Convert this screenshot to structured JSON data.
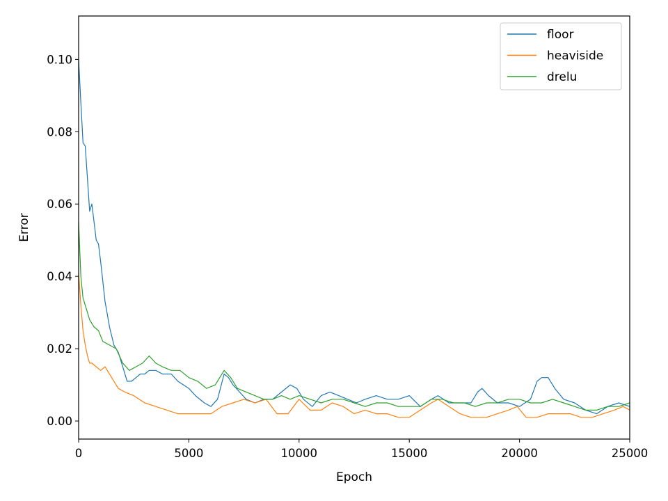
{
  "chart_data": {
    "type": "line",
    "title": "",
    "xlabel": "Epoch",
    "ylabel": "Error",
    "xlim": [
      0,
      25000
    ],
    "ylim": [
      -0.005,
      0.112
    ],
    "xticks": [
      0,
      5000,
      10000,
      15000,
      20000,
      25000
    ],
    "xtick_labels": [
      "0",
      "5000",
      "10000",
      "15000",
      "20000",
      "25000"
    ],
    "yticks": [
      0.0,
      0.02,
      0.04,
      0.06,
      0.08,
      0.1
    ],
    "ytick_labels": [
      "0.00",
      "0.02",
      "0.04",
      "0.06",
      "0.08",
      "0.10"
    ],
    "grid": false,
    "legend_position": "top-right",
    "series": [
      {
        "name": "floor",
        "color": "#1f77b4",
        "x": [
          0,
          100,
          200,
          300,
          400,
          500,
          600,
          700,
          800,
          900,
          1000,
          1200,
          1400,
          1600,
          1800,
          2000,
          2200,
          2400,
          2600,
          2800,
          3000,
          3200,
          3500,
          3800,
          4200,
          4500,
          5000,
          5300,
          5700,
          6000,
          6300,
          6600,
          6800,
          7000,
          7300,
          7600,
          8000,
          8400,
          8800,
          9200,
          9600,
          9900,
          10200,
          10600,
          11000,
          11400,
          11800,
          12200,
          12600,
          13000,
          13500,
          14000,
          14500,
          15000,
          15500,
          16000,
          16300,
          16800,
          17300,
          17800,
          18100,
          18300,
          18600,
          19000,
          19500,
          20000,
          20500,
          20800,
          21000,
          21300,
          21600,
          22000,
          22500,
          23000,
          23500,
          24000,
          24500,
          25000
        ],
        "y": [
          0.1,
          0.088,
          0.077,
          0.076,
          0.067,
          0.058,
          0.06,
          0.055,
          0.05,
          0.049,
          0.044,
          0.033,
          0.026,
          0.021,
          0.019,
          0.015,
          0.011,
          0.011,
          0.012,
          0.013,
          0.013,
          0.014,
          0.014,
          0.013,
          0.013,
          0.011,
          0.009,
          0.007,
          0.005,
          0.004,
          0.006,
          0.013,
          0.012,
          0.01,
          0.008,
          0.006,
          0.005,
          0.006,
          0.006,
          0.008,
          0.01,
          0.009,
          0.006,
          0.004,
          0.007,
          0.008,
          0.007,
          0.006,
          0.005,
          0.006,
          0.007,
          0.006,
          0.006,
          0.007,
          0.004,
          0.006,
          0.007,
          0.005,
          0.005,
          0.005,
          0.008,
          0.009,
          0.007,
          0.005,
          0.005,
          0.004,
          0.006,
          0.011,
          0.012,
          0.012,
          0.009,
          0.006,
          0.005,
          0.003,
          0.002,
          0.004,
          0.005,
          0.004
        ]
      },
      {
        "name": "heaviside",
        "color": "#ff7f0e",
        "x": [
          0,
          100,
          200,
          300,
          400,
          500,
          600,
          800,
          1000,
          1200,
          1500,
          1800,
          2100,
          2500,
          3000,
          3500,
          4000,
          4500,
          5000,
          5500,
          6000,
          6500,
          7000,
          7500,
          8000,
          8500,
          9000,
          9500,
          10000,
          10500,
          11000,
          11500,
          12000,
          12500,
          13000,
          13500,
          14000,
          14500,
          15000,
          15500,
          16000,
          16300,
          16800,
          17300,
          17800,
          18500,
          19000,
          19500,
          19900,
          20300,
          20800,
          21300,
          21800,
          22300,
          22800,
          23300,
          23800,
          24300,
          24700,
          25000
        ],
        "y": [
          0.041,
          0.032,
          0.025,
          0.021,
          0.018,
          0.016,
          0.016,
          0.015,
          0.014,
          0.015,
          0.012,
          0.009,
          0.008,
          0.007,
          0.005,
          0.004,
          0.003,
          0.002,
          0.002,
          0.002,
          0.002,
          0.004,
          0.005,
          0.006,
          0.005,
          0.006,
          0.002,
          0.002,
          0.006,
          0.003,
          0.003,
          0.005,
          0.004,
          0.002,
          0.003,
          0.002,
          0.002,
          0.001,
          0.001,
          0.003,
          0.005,
          0.006,
          0.004,
          0.002,
          0.001,
          0.001,
          0.002,
          0.003,
          0.004,
          0.001,
          0.001,
          0.002,
          0.002,
          0.002,
          0.001,
          0.001,
          0.002,
          0.003,
          0.004,
          0.003
        ]
      },
      {
        "name": "drelu",
        "color": "#2ca02c",
        "x": [
          0,
          100,
          200,
          300,
          400,
          500,
          700,
          900,
          1100,
          1400,
          1700,
          2000,
          2300,
          2600,
          2900,
          3200,
          3500,
          3800,
          4200,
          4600,
          5000,
          5400,
          5800,
          6200,
          6600,
          6900,
          7200,
          7600,
          8000,
          8400,
          8800,
          9200,
          9600,
          10000,
          10500,
          11000,
          11500,
          12000,
          12500,
          13000,
          13500,
          14000,
          14500,
          15000,
          15500,
          16000,
          16500,
          17000,
          17500,
          18000,
          18500,
          19000,
          19500,
          20000,
          20500,
          21000,
          21500,
          22000,
          22500,
          23000,
          23500,
          24000,
          24500,
          25000
        ],
        "y": [
          0.055,
          0.04,
          0.034,
          0.032,
          0.03,
          0.028,
          0.026,
          0.025,
          0.022,
          0.021,
          0.02,
          0.016,
          0.014,
          0.015,
          0.016,
          0.018,
          0.016,
          0.015,
          0.014,
          0.014,
          0.012,
          0.011,
          0.009,
          0.01,
          0.014,
          0.012,
          0.009,
          0.008,
          0.007,
          0.006,
          0.006,
          0.007,
          0.006,
          0.007,
          0.006,
          0.005,
          0.006,
          0.006,
          0.005,
          0.004,
          0.005,
          0.005,
          0.004,
          0.004,
          0.004,
          0.006,
          0.006,
          0.005,
          0.005,
          0.004,
          0.005,
          0.005,
          0.006,
          0.006,
          0.005,
          0.005,
          0.006,
          0.005,
          0.004,
          0.003,
          0.003,
          0.004,
          0.004,
          0.005
        ]
      }
    ]
  }
}
